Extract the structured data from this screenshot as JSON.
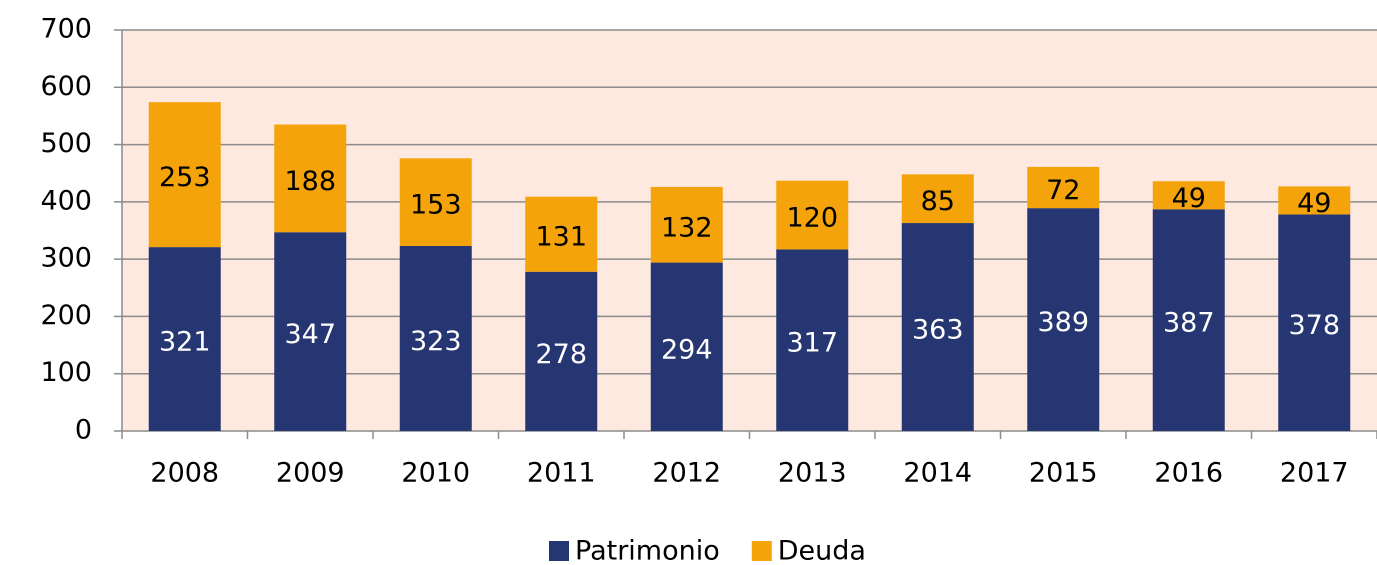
{
  "chart_data": {
    "type": "stacked_bar",
    "categories": [
      "2008",
      "2009",
      "2010",
      "2011",
      "2012",
      "2013",
      "2014",
      "2015",
      "2016",
      "2017"
    ],
    "series": [
      {
        "name": "Patrimonio",
        "color": "#263672",
        "values": [
          321,
          347,
          323,
          278,
          294,
          317,
          363,
          389,
          387,
          378
        ]
      },
      {
        "name": "Deuda",
        "color": "#f5a30a",
        "values": [
          253,
          188,
          153,
          131,
          132,
          120,
          85,
          72,
          49,
          49
        ]
      }
    ],
    "ylim": [
      0,
      700
    ],
    "yticks": [
      0,
      100,
      200,
      300,
      400,
      500,
      600,
      700
    ],
    "grid": true,
    "background": "#fde9df",
    "legend": "bottom"
  }
}
